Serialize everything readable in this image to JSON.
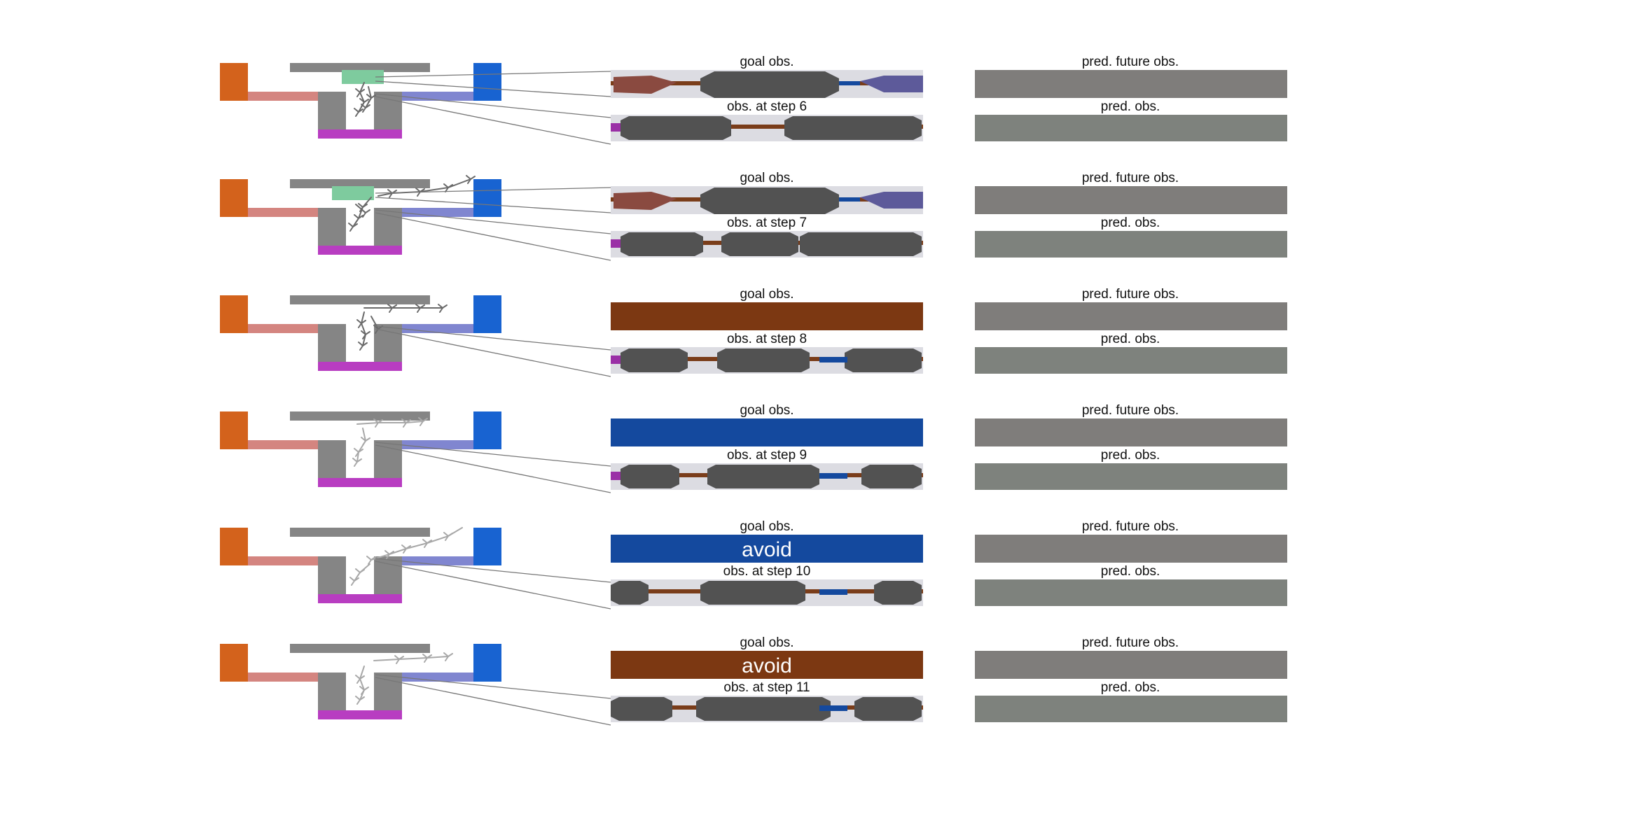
{
  "rows": [
    {
      "goal_label": "goal obs.",
      "obs_label": "obs. at step 6",
      "pred_future_label": "pred. future obs.",
      "pred_obs_label": "pred. obs.",
      "goal_view": "corridor",
      "goal_text": "",
      "has_goal_marker": true,
      "obs_view": "variantA"
    },
    {
      "goal_label": "goal obs.",
      "obs_label": "obs. at step 7",
      "pred_future_label": "pred. future obs.",
      "pred_obs_label": "pred. obs.",
      "goal_view": "corridor",
      "goal_text": "",
      "has_goal_marker": true,
      "obs_view": "variantB"
    },
    {
      "goal_label": "goal obs.",
      "obs_label": "obs. at step 8",
      "pred_future_label": "pred. future obs.",
      "pred_obs_label": "pred. obs.",
      "goal_view": "brown",
      "goal_text": "",
      "has_goal_marker": false,
      "obs_view": "variantC"
    },
    {
      "goal_label": "goal obs.",
      "obs_label": "obs. at step 9",
      "pred_future_label": "pred. future obs.",
      "pred_obs_label": "pred. obs.",
      "goal_view": "blue",
      "goal_text": "",
      "has_goal_marker": false,
      "obs_view": "variantD"
    },
    {
      "goal_label": "goal obs.",
      "obs_label": "obs. at step 10",
      "pred_future_label": "pred. future obs.",
      "pred_obs_label": "pred. obs.",
      "goal_view": "blue",
      "goal_text": "avoid",
      "has_goal_marker": false,
      "obs_view": "variantE"
    },
    {
      "goal_label": "goal obs.",
      "obs_label": "obs. at step 11",
      "pred_future_label": "pred. future obs.",
      "pred_obs_label": "pred. obs.",
      "goal_view": "brown",
      "goal_text": "avoid",
      "has_goal_marker": false,
      "obs_view": "variantF"
    }
  ],
  "colors": {
    "orange_block": "#d3621c",
    "orange_bar": "#d48580",
    "blue_block": "#1863d1",
    "blue_bar": "#8086d0",
    "magenta_bar": "#b83dc1",
    "gray_wall": "#858585",
    "goal_marker": "#7ecb9e",
    "goal_brown": "#7c3812",
    "goal_blue": "#14499e",
    "obs_bg": "#dcdce2",
    "obs_blob": "#525252",
    "pred_future": "#7f7d7b",
    "pred_obs": "#7e827d",
    "connector": "#777777"
  }
}
